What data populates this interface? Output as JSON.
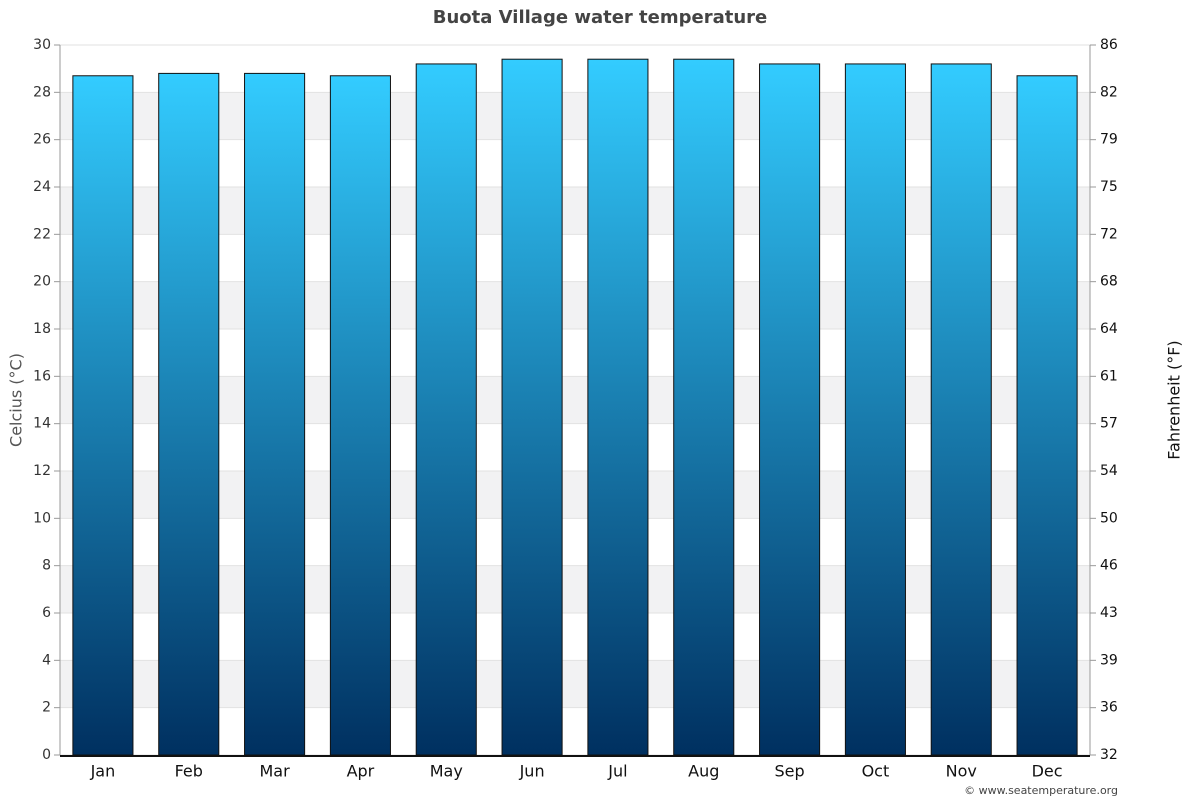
{
  "chart_data": {
    "type": "bar",
    "title": "Buota Village water temperature",
    "y_label": "Celcius (°C)",
    "y2_label": "Fahrenheit (°F)",
    "credit": "© www.seatemperature.org",
    "categories": [
      "Jan",
      "Feb",
      "Mar",
      "Apr",
      "May",
      "Jun",
      "Jul",
      "Aug",
      "Sep",
      "Oct",
      "Nov",
      "Dec"
    ],
    "values": [
      28.7,
      28.8,
      28.8,
      28.7,
      29.2,
      29.4,
      29.4,
      29.4,
      29.2,
      29.2,
      29.2,
      28.7
    ],
    "color_top": "#33ccff",
    "color_bottom": "#003060",
    "ylim": [
      0,
      30
    ],
    "yticks": [
      0,
      2,
      4,
      6,
      8,
      10,
      12,
      14,
      16,
      18,
      20,
      22,
      24,
      26,
      28,
      30
    ],
    "y2lim": [
      32,
      86
    ],
    "y2ticks": [
      32,
      {
        "value": 35.6,
        "label": "36"
      },
      {
        "value": 39.2,
        "label": "39"
      },
      {
        "value": 42.8,
        "label": "43"
      },
      {
        "value": 46.4,
        "label": "46"
      },
      50,
      {
        "value": 53.6,
        "label": "54"
      },
      {
        "value": 57.2,
        "label": "57"
      },
      {
        "value": 60.8,
        "label": "61"
      },
      {
        "value": 64.4,
        "label": "64"
      },
      68,
      {
        "value": 71.6,
        "label": "72"
      },
      {
        "value": 75.2,
        "label": "75"
      },
      {
        "value": 78.8,
        "label": "79"
      },
      {
        "value": 82.4,
        "label": "82"
      },
      86
    ],
    "grid": true
  }
}
